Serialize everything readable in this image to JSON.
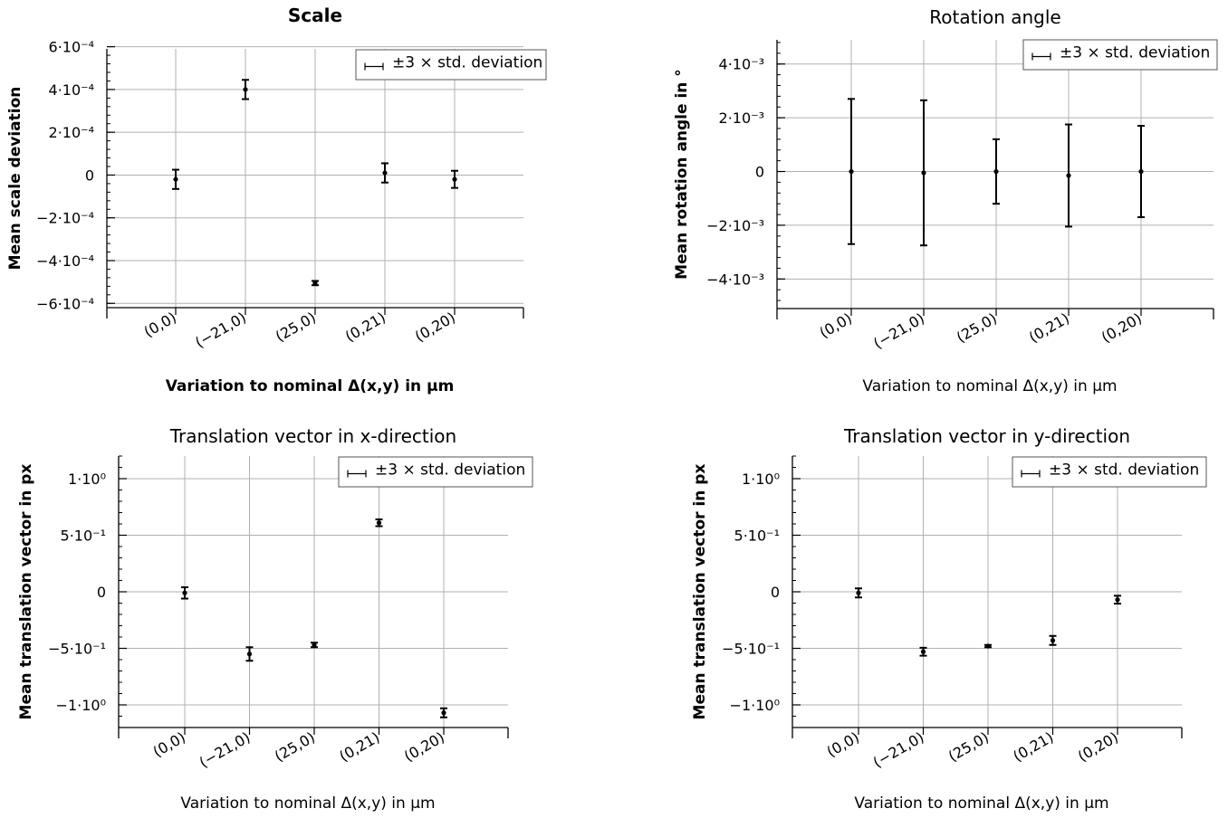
{
  "chart_data": [
    {
      "type": "scatter",
      "title": "Scale",
      "xlabel": "Variation to nominal  Δ(x,y) in µm",
      "ylabel": "Mean scale deviation",
      "categories": [
        "(0,0)",
        "(−21,0)",
        "(25,0)",
        "(0,21)",
        "(0,20)"
      ],
      "ylim": [
        -0.00062,
        0.00059
      ],
      "yticks": [
        0.0006,
        0.0004,
        0.0002,
        0,
        -0.0002,
        -0.0004,
        -0.0006
      ],
      "ytick_labels": [
        "6·10⁻⁴",
        "4·10⁻⁴",
        "2·10⁻⁴",
        "0",
        "−2·10⁻⁴",
        "−4·10⁻⁴",
        "−6·10⁻⁴"
      ],
      "series": [
        {
          "values": [
            -2e-05,
            0.0004,
            -0.000505,
            1e-05,
            -2e-05
          ],
          "error": [
            4.5e-05,
            4.5e-05,
            1e-05,
            4.5e-05,
            4e-05
          ]
        }
      ],
      "legend": {
        "label": "±3 × std. deviation",
        "position": "top-right"
      },
      "grid": true
    },
    {
      "type": "scatter",
      "title": "Rotation angle",
      "xlabel": "Variation to nominal  Δ(x,y) in µm",
      "ylabel": "Mean rotation angle in °",
      "categories": [
        "(0,0)",
        "(−21,0)",
        "(25,0)",
        "(0,21)",
        "(0,20)"
      ],
      "ylim": [
        -0.0051,
        0.0049
      ],
      "yticks": [
        0.004,
        0.002,
        0,
        -0.002,
        -0.004
      ],
      "ytick_labels": [
        "4·10⁻³",
        "2·10⁻³",
        "0",
        "−2·10⁻³",
        "−4·10⁻³"
      ],
      "series": [
        {
          "values": [
            0,
            -5e-05,
            0,
            -0.00015,
            0
          ],
          "error": [
            0.0027,
            0.0027,
            0.0012,
            0.0019,
            0.0017
          ]
        }
      ],
      "legend": {
        "label": "±3 × std. deviation",
        "position": "top-right"
      },
      "grid": true
    },
    {
      "type": "scatter",
      "title": "Translation vector in x-direction",
      "xlabel": "Variation to nominal  Δ(x,y) in µm",
      "ylabel": "Mean translation vector in px",
      "categories": [
        "(0,0)",
        "(−21,0)",
        "(25,0)",
        "(0,21)",
        "(0,20)"
      ],
      "ylim": [
        -1.2,
        1.2
      ],
      "yticks": [
        1,
        0.5,
        0,
        -0.5,
        -1
      ],
      "ytick_labels": [
        "1·10⁰",
        "5·10⁻¹",
        "0",
        "−5·10⁻¹",
        "−1·10⁰"
      ],
      "series": [
        {
          "values": [
            -0.01,
            -0.55,
            -0.47,
            0.61,
            -1.07
          ],
          "error": [
            0.05,
            0.06,
            0.02,
            0.03,
            0.04
          ]
        }
      ],
      "legend": {
        "label": "±3 × std. deviation",
        "position": "top-right"
      },
      "grid": true
    },
    {
      "type": "scatter",
      "title": "Translation vector in y-direction",
      "xlabel": "Variation to nominal  Δ(x,y) in µm",
      "ylabel": "Mean translation vector in px",
      "categories": [
        "(0,0)",
        "(−21,0)",
        "(25,0)",
        "(0,21)",
        "(0,20)"
      ],
      "ylim": [
        -1.2,
        1.2
      ],
      "yticks": [
        1,
        0.5,
        0,
        -0.5,
        -1
      ],
      "ytick_labels": [
        "1·10⁰",
        "5·10⁻¹",
        "0",
        "−5·10⁻¹",
        "−1·10⁰"
      ],
      "series": [
        {
          "values": [
            -0.01,
            -0.53,
            -0.48,
            -0.43,
            -0.07
          ],
          "error": [
            0.04,
            0.035,
            0.01,
            0.04,
            0.035
          ]
        }
      ],
      "legend": {
        "label": "±3 × std. deviation",
        "position": "top-right"
      },
      "grid": true
    }
  ]
}
